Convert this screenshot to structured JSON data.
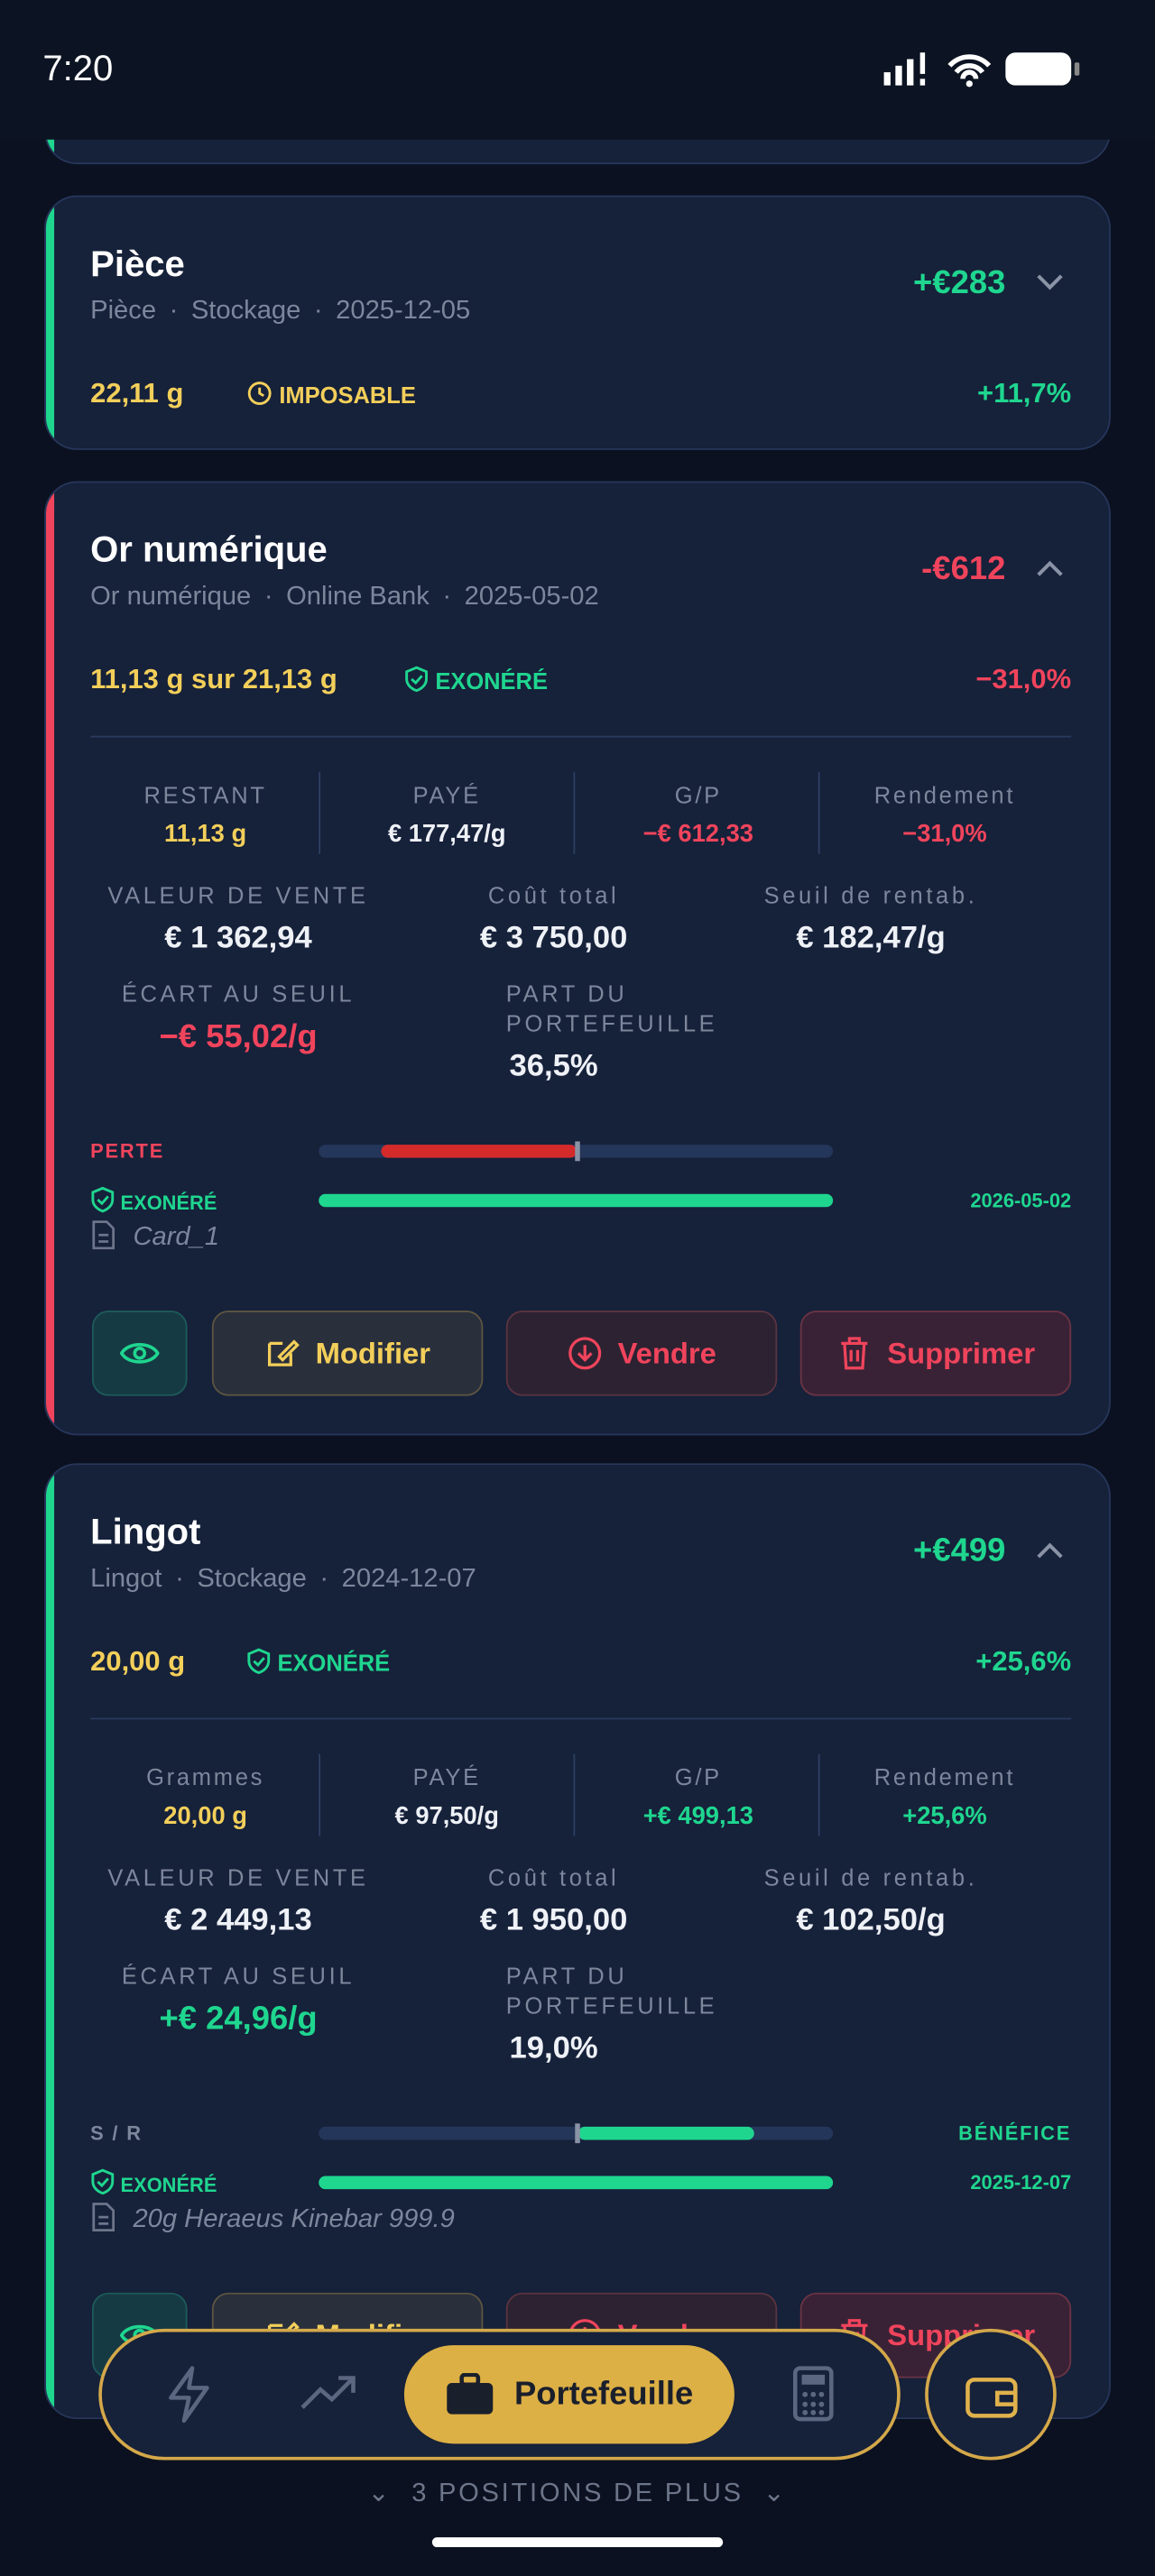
{
  "status": {
    "time": "7:20"
  },
  "cards": [
    {
      "title": "Pièce",
      "meta": [
        "Pièce",
        "Stockage",
        "2025-12-05"
      ],
      "pl": "+€283",
      "weight": "22,11 g",
      "tax": "IMPOSABLE",
      "pct": "+11,7%"
    },
    {
      "title": "Or numérique",
      "meta": [
        "Or numérique",
        "Online Bank",
        "2025-05-02"
      ],
      "pl": "-€612",
      "weight": "11,13 g sur 21,13 g",
      "tax": "EXONÉRÉ",
      "pct": "−31,0%",
      "stats": [
        {
          "label": "RESTANT",
          "value": "11,13 g"
        },
        {
          "label": "PAYÉ",
          "value": "€ 177,47/g"
        },
        {
          "label": "G/P",
          "value": "−€ 612,33"
        },
        {
          "label": "Rendement",
          "value": "−31,0%"
        }
      ],
      "details": [
        {
          "label": "VALEUR DE VENTE",
          "value": "€ 1 362,94"
        },
        {
          "label": "Coût total",
          "value": "€ 3 750,00"
        },
        {
          "label": "Seuil de rentab.",
          "value": "€ 182,47/g"
        },
        {
          "label": "ÉCART AU SEUIL",
          "value": "−€ 55,02/g"
        },
        {
          "label": "PART DU PORTEFEUILLE",
          "value": "36,5%"
        }
      ],
      "bar_label": "PERTE",
      "tax_label": "EXONÉRÉ",
      "tax_date": "2026-05-02",
      "note": "Card_1",
      "actions": [
        "Modifier",
        "Vendre",
        "Supprimer"
      ]
    },
    {
      "title": "Lingot",
      "meta": [
        "Lingot",
        "Stockage",
        "2024-12-07"
      ],
      "pl": "+€499",
      "weight": "20,00 g",
      "tax": "EXONÉRÉ",
      "pct": "+25,6%",
      "stats": [
        {
          "label": "Grammes",
          "value": "20,00 g"
        },
        {
          "label": "PAYÉ",
          "value": "€ 97,50/g"
        },
        {
          "label": "G/P",
          "value": "+€ 499,13"
        },
        {
          "label": "Rendement",
          "value": "+25,6%"
        }
      ],
      "details": [
        {
          "label": "VALEUR DE VENTE",
          "value": "€ 2 449,13"
        },
        {
          "label": "Coût total",
          "value": "€ 1 950,00"
        },
        {
          "label": "Seuil de rentab.",
          "value": "€ 102,50/g"
        },
        {
          "label": "ÉCART AU SEUIL",
          "value": "+€ 24,96/g"
        },
        {
          "label": "PART DU PORTEFEUILLE",
          "value": "19,0%"
        }
      ],
      "bar_label": "S / R",
      "bar_right": "BÉNÉFICE",
      "tax_label": "EXONÉRÉ",
      "tax_date": "2025-12-07",
      "note": "20g Heraeus Kinebar 999.9",
      "actions": [
        "Modifier",
        "Vendre",
        "Supprimer"
      ]
    }
  ],
  "nav": {
    "active": "Portefeuille",
    "more": "3 POSITIONS DE PLUS"
  }
}
